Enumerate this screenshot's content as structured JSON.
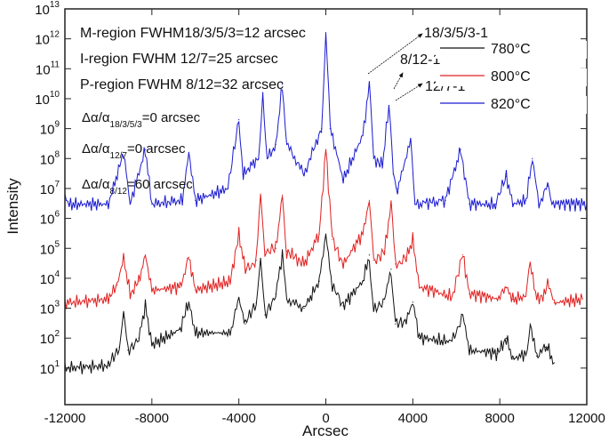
{
  "chart_data": {
    "type": "line",
    "xlabel": "Arcsec",
    "ylabel": "Intensity",
    "xlim": [
      -12000,
      12000
    ],
    "ylim": [
      0.6,
      10000000000000.0
    ],
    "yscale": "log",
    "grid": false,
    "legend_position": "top-right",
    "x_ticks": [
      -12000,
      -8000,
      -4000,
      0,
      4000,
      8000,
      12000
    ],
    "x_tick_labels": [
      "-12000",
      "-8000",
      "-4000",
      "0",
      "4000",
      "8000",
      "12000"
    ],
    "y_ticks_exp": [
      1,
      2,
      3,
      4,
      5,
      6,
      7,
      8,
      9,
      10,
      11,
      12,
      13
    ],
    "annotations": {
      "text_lines": [
        "M-region FWHM18/3/5/3=12 arcsec",
        "I-region FWHM 12/7=25 arcsec",
        "P-region FWHM 8/12=32 arcsec"
      ],
      "delta": [
        {
          "prefix": "Δα/α",
          "sub": "18/3/5/3",
          "suffix": "=0 arcsec"
        },
        {
          "prefix": "Δα/α",
          "sub": "12/7",
          "suffix": "=0 arcsec"
        },
        {
          "prefix": "Δα/α",
          "sub": "8/12",
          "suffix": "=60 arcsec"
        }
      ],
      "peak_labels": [
        "18/3/5/3-1",
        "8/12-1",
        "12/7-1"
      ]
    },
    "series": [
      {
        "name": "780°C",
        "color": "#111111",
        "x": [
          -12000,
          -10000,
          -9500,
          -9300,
          -9100,
          -8600,
          -8300,
          -8000,
          -6700,
          -6300,
          -6000,
          -4400,
          -4000,
          -3700,
          -3200,
          -3000,
          -2800,
          -2300,
          -2000,
          -1800,
          -1000,
          -300,
          0,
          300,
          800,
          1700,
          2000,
          2200,
          2700,
          3000,
          3200,
          3700,
          4000,
          4300,
          5800,
          6300,
          6600,
          7900,
          8300,
          8600,
          9200,
          9400,
          9700,
          10100,
          10200,
          10500
        ],
        "y": [
          10,
          12,
          50,
          500,
          40,
          100,
          1200,
          60,
          200,
          1600,
          150,
          150,
          2000,
          300,
          1500,
          30000,
          600,
          3000,
          60000,
          2000,
          1000,
          8000,
          300000,
          5000,
          1200,
          8000,
          60000,
          800,
          2000,
          20000,
          300,
          400,
          1600,
          100,
          80,
          600,
          40,
          30,
          100,
          20,
          30,
          300,
          25,
          50,
          50,
          15
        ]
      },
      {
        "name": "800°C",
        "color": "#e02020",
        "x": [
          -12000,
          -10000,
          -9600,
          -9300,
          -9000,
          -8600,
          -8300,
          -8000,
          -6700,
          -6300,
          -6000,
          -4400,
          -4000,
          -3700,
          -3200,
          -3000,
          -2800,
          -2300,
          -2000,
          -1800,
          -1000,
          -300,
          0,
          300,
          800,
          1700,
          2000,
          2200,
          2700,
          3000,
          3200,
          3700,
          4000,
          4300,
          5800,
          6300,
          6600,
          7900,
          8300,
          8600,
          9200,
          9400,
          9700,
          10100,
          10200,
          10500,
          11800
        ],
        "y": [
          1500,
          2000,
          6000,
          50000,
          3000,
          8000,
          60000,
          4000,
          5000,
          50000,
          4000,
          8000,
          300000,
          20000,
          40000,
          5000000,
          80000,
          100000,
          6000000,
          80000,
          30000,
          300000,
          200000000,
          200000,
          30000,
          300000,
          4000000,
          40000,
          80000,
          3000000,
          30000,
          50000,
          200000,
          5000,
          2500,
          60000,
          3000,
          2000,
          5000,
          2000,
          2500,
          30000,
          2000,
          3000,
          8000,
          1500,
          2000
        ]
      },
      {
        "name": "820°C",
        "color": "#1a1ad0",
        "x": [
          -12000,
          -11800,
          -10000,
          -9300,
          -9000,
          -8300,
          -8000,
          -6600,
          -6300,
          -6000,
          -4500,
          -4000,
          -3800,
          -3100,
          -2900,
          -2700,
          -2300,
          -2000,
          -1800,
          -1000,
          -200,
          0,
          200,
          800,
          1700,
          2000,
          2200,
          2600,
          2900,
          3100,
          3300,
          3900,
          4100,
          5500,
          6200,
          6600,
          7800,
          8300,
          8600,
          9200,
          9500,
          9800,
          10200,
          10400,
          12000
        ],
        "y": [
          10000000.0,
          3000000.0,
          3000000.0,
          160000000.0,
          3000000.0,
          200000000.0,
          3000000.0,
          4000000.0,
          160000000.0,
          4000000.0,
          10000000.0,
          2000000000.0,
          30000000.0,
          100000000.0,
          16000000000.0,
          100000000.0,
          300000000.0,
          30000000000.0,
          300000000.0,
          30000000.0,
          1000000000.0,
          1600000000000.0,
          1000000000.0,
          20000000.0,
          600000000.0,
          25000000000.0,
          100000000.0,
          60000000.0,
          6000000000.0,
          30000000.0,
          10000000.0,
          400000000.0,
          3000000.0,
          4000000.0,
          200000000.0,
          3000000.0,
          3000000.0,
          25000000.0,
          3000000.0,
          4000000.0,
          100000000.0,
          3000000.0,
          12000000.0,
          3000000.0,
          3000000.0
        ]
      }
    ]
  }
}
